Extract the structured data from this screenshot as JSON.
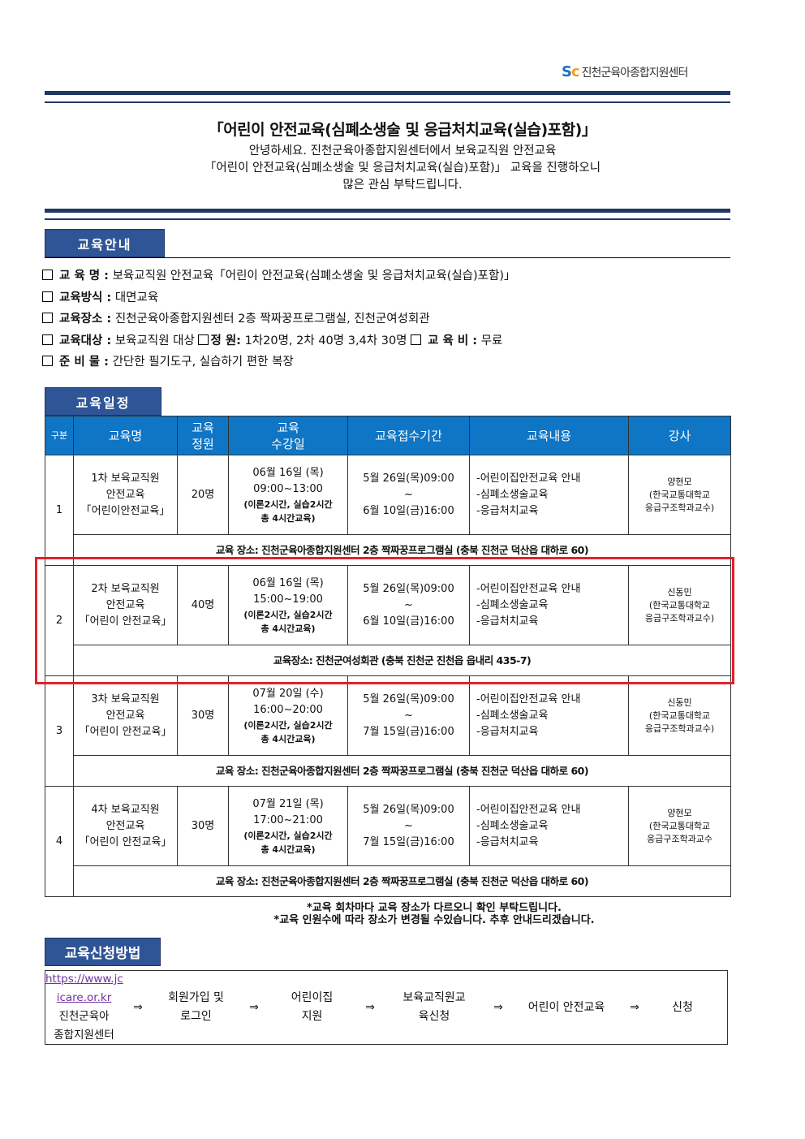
{
  "logo": {
    "text": "진천군육아종합지원센터"
  },
  "title": "「어린이 안전교육(심폐소생술 및 응급처치교육(실습)포함)」",
  "intro": [
    "안녕하세요. 진천군육아종합지원센터에서 보육교직원 안전교육",
    "「어린이 안전교육(심폐소생술 및 응급처치교육(실습)포함)」 교육을 진행하오니",
    "많은 관심 부탁드립니다."
  ],
  "sections": {
    "guide": "교육안내",
    "schedule": "교육일정",
    "apply": "교육신청방법"
  },
  "info": [
    {
      "label": "교 육 명 :",
      "value": "보육교직원 안전교육「어린이 안전교육(심폐소생술 및 응급처치교육(실습)포함)」"
    },
    {
      "label": "교육방식 :",
      "value": "대면교육"
    },
    {
      "label": "교육장소 :",
      "value": "진천군육아종합지원센터 2층 짝짜꿍프로그램실, 진천군여성회관"
    },
    {
      "label": "교육대상 :",
      "value": "보육교직원 대상",
      "label2": "정 원:",
      "value2": "1차20명, 2차 40명 3,4차 30명",
      "label3": "교 육 비 :",
      "value3": "무료"
    },
    {
      "label": "준 비 물 :",
      "value": "간단한 필기도구, 실습하기 편한 복장"
    }
  ],
  "table": {
    "headers": [
      "구분",
      "교육명",
      "교육\n정원",
      "교육\n수강일",
      "교육접수기간",
      "교육내용",
      "강사"
    ],
    "rows": [
      {
        "no": "1",
        "name": [
          "1차 보육교직원",
          "안전교육",
          "「어린이안전교육」"
        ],
        "cap": "20명",
        "date": "06월 16일 (목)",
        "time": "09:00~13:00",
        "detail": [
          "(이론2시간, 실습2시간",
          "총 4시간교육)"
        ],
        "reg": [
          "5월 26일(목)09:00",
          "~",
          "6월 10일(금)16:00"
        ],
        "content": [
          "-어린이집안전교육 안내",
          "-심폐소생술교육",
          "-응급처치교육"
        ],
        "lecturer": [
          "양현모",
          "(한국교통대학교",
          "응급구조학과교수)"
        ],
        "place": "교육 장소: 진천군육아종합지원센터 2층 짝짜꿍프로그램실 (충북 진천군 덕산읍 대하로 60)"
      },
      {
        "no": "2",
        "name": [
          "2차 보육교직원",
          "안전교육",
          "「어린이 안전교육」"
        ],
        "cap": "40명",
        "date": "06월 16일 (목)",
        "time": "15:00~19:00",
        "detail": [
          "(이론2시간, 실습2시간",
          "총 4시간교육)"
        ],
        "reg": [
          "5월 26일(목)09:00",
          "~",
          "6월 10일(금)16:00"
        ],
        "content": [
          "-어린이집안전교육 안내",
          "-심폐소생술교육",
          "-응급처치교육"
        ],
        "lecturer": [
          "신동민",
          "(한국교통대학교",
          "응급구조학과교수)"
        ],
        "place": "교육장소: 진천군여성회관 (충북 진천군 진천읍 읍내리 435-7)"
      },
      {
        "no": "3",
        "name": [
          "3차 보육교직원",
          "안전교육",
          "「어린이 안전교육」"
        ],
        "cap": "30명",
        "date": "07월 20일 (수)",
        "time": "16:00~20:00",
        "detail": [
          "(이론2시간, 실습2시간",
          "총 4시간교육)"
        ],
        "reg": [
          "5월 26일(목)09:00",
          "~",
          "7월 15일(금)16:00"
        ],
        "content": [
          "-어린이집안전교육 안내",
          "-심폐소생술교육",
          "-응급처치교육"
        ],
        "lecturer": [
          "신동민",
          "(한국교통대학교",
          "응급구조학과교수)"
        ],
        "place": "교육 장소: 진천군육아종합지원센터 2층 짝짜꿍프로그램실 (충북 진천군 덕산읍 대하로 60)"
      },
      {
        "no": "4",
        "name": [
          "4차 보육교직원",
          "안전교육",
          "「어린이 안전교육」"
        ],
        "cap": "30명",
        "date": "07월 21일 (목)",
        "time": "17:00~21:00",
        "detail": [
          "(이론2시간, 실습2시간",
          "총 4시간교육)"
        ],
        "reg": [
          "5월 26일(목)09:00",
          "~",
          "7월 15일(금)16:00"
        ],
        "content": [
          "-어린이집안전교육 안내",
          "-심폐소생술교육",
          "-응급처치교육"
        ],
        "lecturer": [
          "양현모",
          "(한국교통대학교",
          "응급구조학과교수"
        ],
        "place": "교육 장소: 진천군육아종합지원센터 2층 짝짜꿍프로그램실 (충북 진천군 덕산읍 대하로 60)"
      }
    ]
  },
  "notes": [
    "*교육 회차마다 교육 장소가 다르오니 확인 부탁드립니다.",
    "*교육 인원수에 따라 장소가 변경될 수있습니다. 추후 안내드리겠습니다."
  ],
  "flow": {
    "link": [
      "https://www.jc",
      "icare.or.kr"
    ],
    "site": [
      "진천군육아",
      "종합지원센터"
    ],
    "arrow": "⇒",
    "steps": [
      [
        "회원가입 및",
        "로그인"
      ],
      [
        "어린이집",
        "지원"
      ],
      [
        "보육교직원교",
        "육신청"
      ],
      [
        "어린이 안전교육"
      ],
      [
        "신청"
      ]
    ]
  },
  "colors": {
    "navy": "#1f3864",
    "tag": "#2f5597",
    "header": "#0f75c5",
    "highlight": "#e3212a"
  }
}
